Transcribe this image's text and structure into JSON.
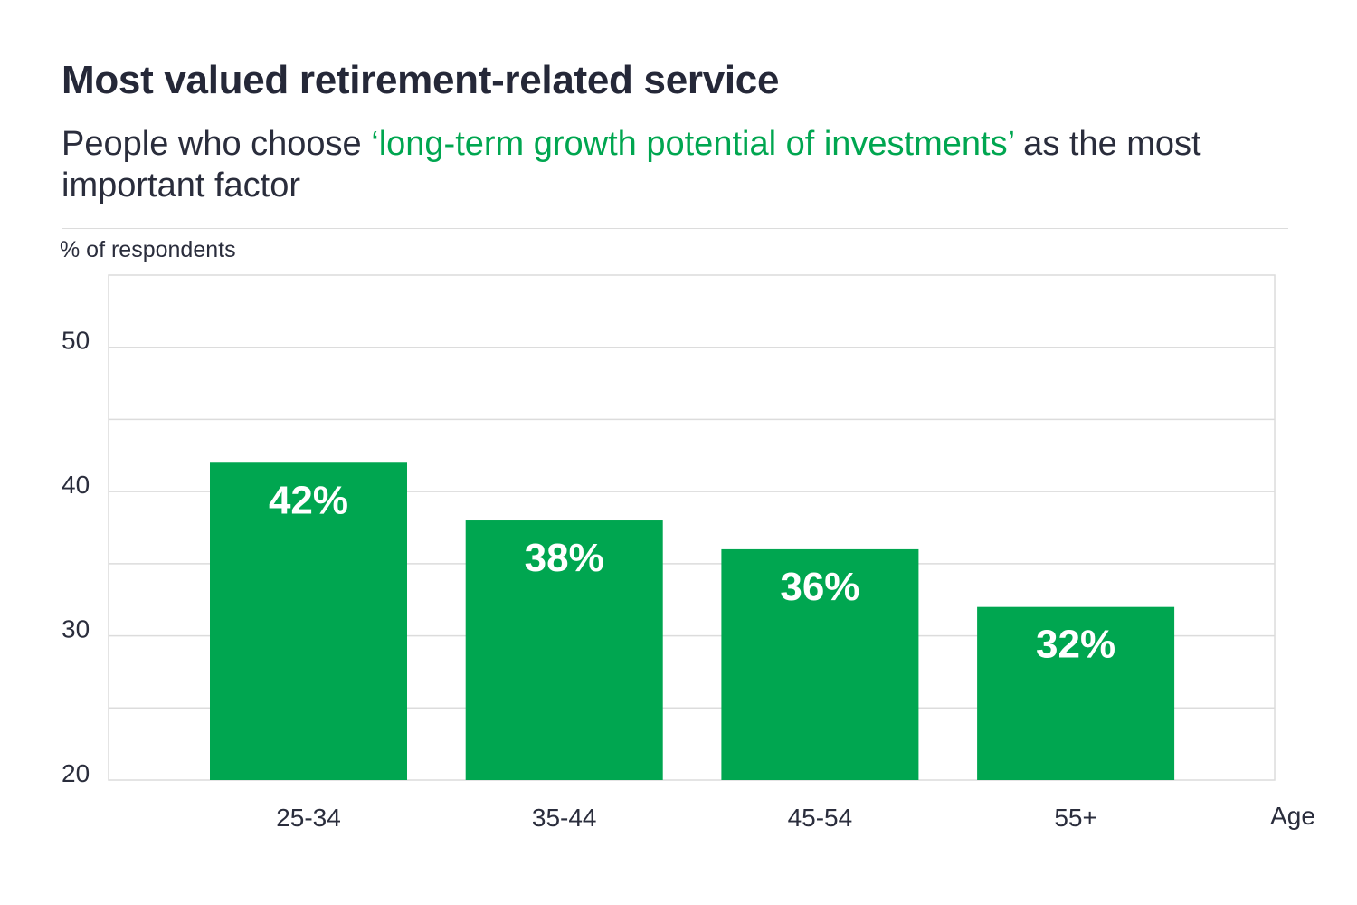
{
  "title": "Most valued retirement-related service",
  "subtitle": {
    "before": "People who choose ",
    "highlight": "‘long-term growth potential of investments’",
    "after": " as the most important factor"
  },
  "colors": {
    "bar": "#00A650",
    "grid": "#DCDCDC",
    "text": "#2A2D3C",
    "highlight": "#00A650"
  },
  "chart_data": {
    "type": "bar",
    "title": "Most valued retirement-related service",
    "ylabel": "% of respondents",
    "xlabel": "Age",
    "categories": [
      "25-34",
      "35-44",
      "45-54",
      "55+"
    ],
    "values": [
      42,
      38,
      36,
      32
    ],
    "data_labels": [
      "42%",
      "38%",
      "36%",
      "32%"
    ],
    "ylim": [
      20,
      55
    ],
    "yticks": [
      20,
      30,
      40,
      50
    ],
    "minor_grid_step": 5,
    "grid": true
  }
}
